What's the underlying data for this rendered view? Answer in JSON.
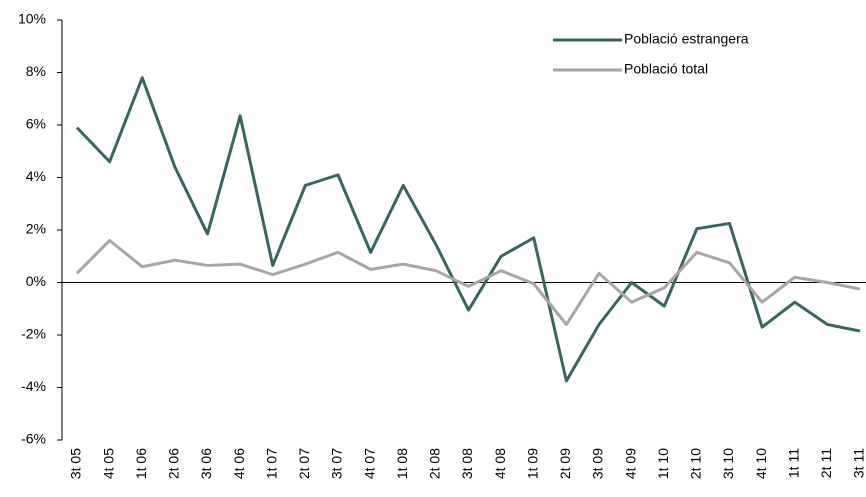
{
  "chart_data": {
    "type": "line",
    "categories": [
      "3t 05",
      "4t 05",
      "1t 06",
      "2t 06",
      "3t 06",
      "4t 06",
      "1t 07",
      "2t 07",
      "3t 07",
      "4t 07",
      "1t 08",
      "2t 08",
      "3t 08",
      "4t 08",
      "1t 09",
      "2t 09",
      "3t 09",
      "4t 09",
      "1t 10",
      "2t 10",
      "3t 10",
      "4t 10",
      "1t 11",
      "2t 11",
      "3t 11"
    ],
    "series": [
      {
        "name": "Població estrangera",
        "color": "#376562",
        "values": [
          5.9,
          4.6,
          7.8,
          4.4,
          1.85,
          6.35,
          0.65,
          3.7,
          4.1,
          1.15,
          3.7,
          1.45,
          -1.05,
          1.0,
          1.7,
          -3.75,
          -1.6,
          0,
          -0.9,
          2.05,
          2.25,
          -1.7,
          -0.75,
          -1.6,
          -1.85
        ]
      },
      {
        "name": "Població total",
        "color": "#a6a6a6",
        "values": [
          0.35,
          1.6,
          0.6,
          0.85,
          0.65,
          0.7,
          0.3,
          0.7,
          1.15,
          0.5,
          0.7,
          0.45,
          -0.15,
          0.45,
          -0.05,
          -1.6,
          0.35,
          -0.75,
          -0.2,
          1.15,
          0.75,
          -0.75,
          0.2,
          0,
          -0.25
        ]
      }
    ],
    "ylim": [
      -6,
      10
    ],
    "yticks": [
      {
        "value": -6,
        "label": "-6%"
      },
      {
        "value": -4,
        "label": "-4%"
      },
      {
        "value": -2,
        "label": "-2%"
      },
      {
        "value": 0,
        "label": "0%"
      },
      {
        "value": 2,
        "label": "2%"
      },
      {
        "value": 4,
        "label": "4%"
      },
      {
        "value": 6,
        "label": "6%"
      },
      {
        "value": 8,
        "label": "8%"
      },
      {
        "value": 10,
        "label": "10%"
      }
    ],
    "grid": false,
    "legend": "top-right"
  }
}
